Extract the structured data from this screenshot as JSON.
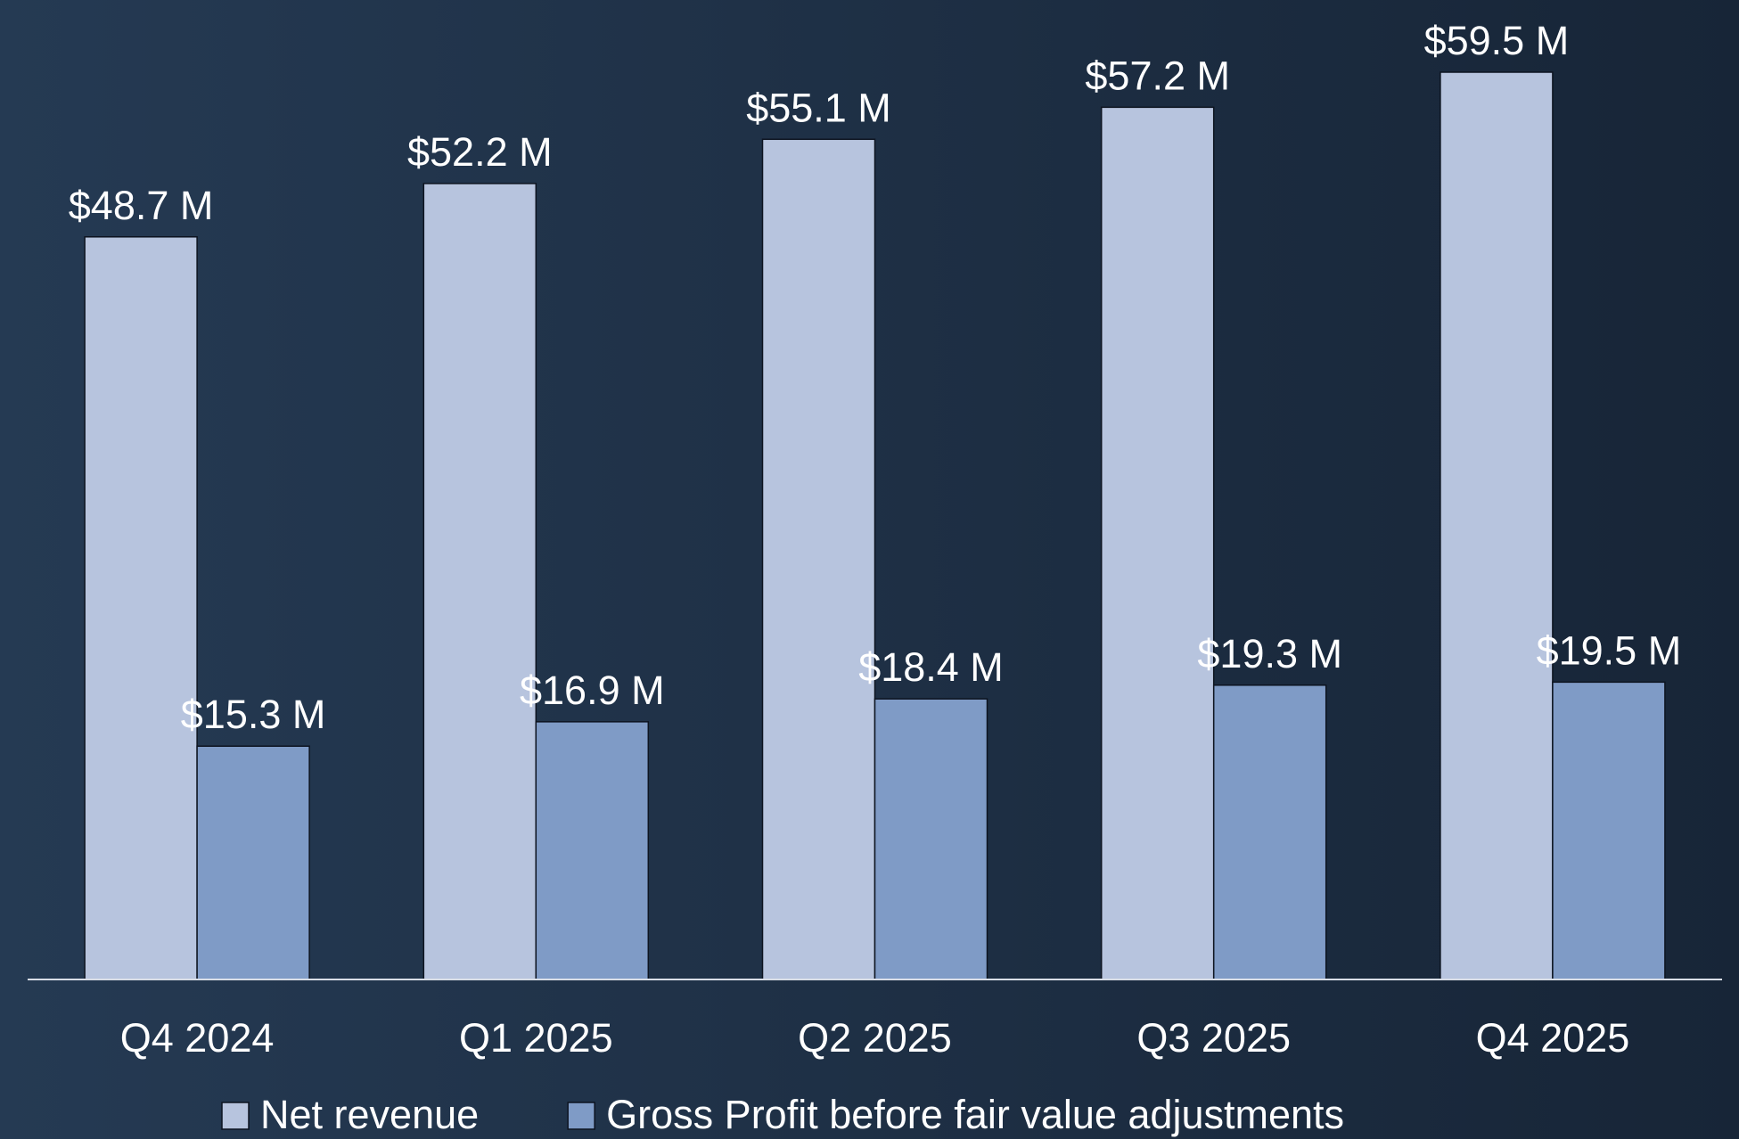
{
  "chart_data": {
    "type": "bar",
    "categories": [
      "Q4 2024",
      "Q1 2025",
      "Q2 2025",
      "Q3 2025",
      "Q4 2025"
    ],
    "series": [
      {
        "name": "Net revenue",
        "color": "#b7c4de",
        "values": [
          48.7,
          52.2,
          55.1,
          57.2,
          59.5
        ],
        "value_labels": [
          "$48.7 M",
          "$52.2 M",
          "$55.1 M",
          "$57.2 M",
          "$59.5 M"
        ]
      },
      {
        "name": "Gross Profit before fair value adjustments",
        "color": "#7f9bc6",
        "values": [
          15.3,
          16.9,
          18.4,
          19.3,
          19.5
        ],
        "value_labels": [
          "$15.3 M",
          "$16.9 M",
          "$18.4 M",
          "$19.3 M",
          "$19.5 M"
        ]
      }
    ]
  }
}
